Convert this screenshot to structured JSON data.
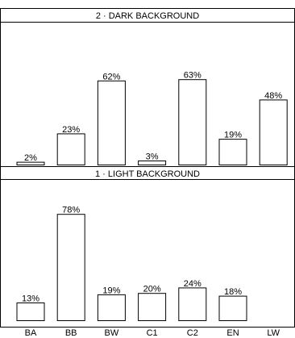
{
  "chart_data": {
    "type": "bar",
    "categories": [
      "BA",
      "BB",
      "BW",
      "C1",
      "C2",
      "EN",
      "LW"
    ],
    "panels": [
      {
        "title": "2 · DARK BACKGROUND",
        "values": [
          2,
          23,
          62,
          3,
          63,
          19,
          48
        ],
        "labels": [
          "2%",
          "23%",
          "62%",
          "3%",
          "63%",
          "19%",
          "48%"
        ]
      },
      {
        "title": "1 · LIGHT BACKGROUND",
        "values": [
          13,
          78,
          19,
          20,
          24,
          18,
          null
        ],
        "labels": [
          "13%",
          "78%",
          "19%",
          "20%",
          "24%",
          "18%",
          ""
        ]
      }
    ],
    "ylim": [
      0,
      100
    ],
    "xlabel": "",
    "ylabel": "",
    "grid": false,
    "legend": "none",
    "colors": {
      "bar_fill": "#ffffff",
      "bar_stroke": "#000000",
      "text": "#000000"
    }
  }
}
